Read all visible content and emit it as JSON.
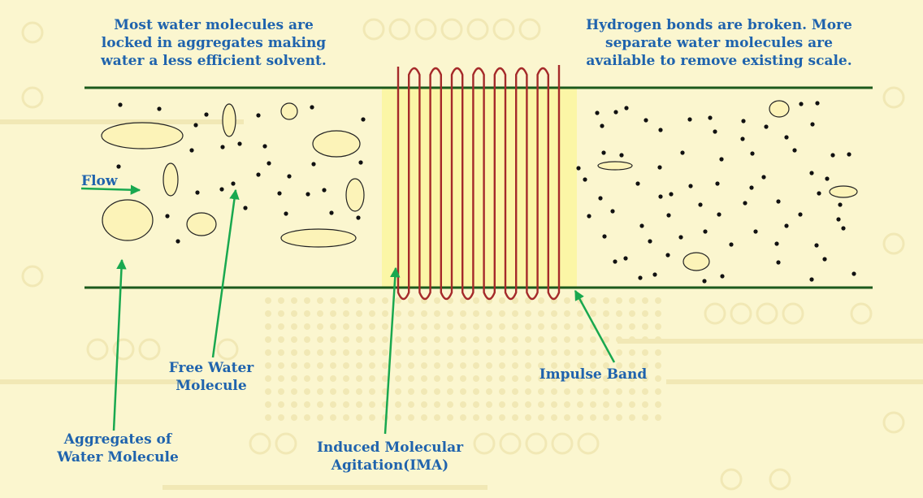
{
  "note_left": {
    "lines": [
      "Most water molecules are",
      "locked in aggregates making",
      "water a less efficient solvent."
    ]
  },
  "note_right": {
    "lines": [
      "Hydrogen bonds are broken. More",
      "separate water molecules are",
      "available to remove existing scale."
    ]
  },
  "labels": {
    "flow": "Flow",
    "free_water": [
      "Free Water",
      "Molecule"
    ],
    "aggregates": [
      "Aggregates of",
      "Water Molecule"
    ],
    "impulse_band": "Impulse Band",
    "ima": [
      "Induced Molecular",
      "Agitation(IMA)"
    ]
  },
  "colors": {
    "background": "#fbf6cf",
    "pattern": "#f1e8b5",
    "pipe_wall": "#1c5a1c",
    "band_fill": "#fbf6a6",
    "coil": "#a52a2a",
    "arrow": "#19a84f",
    "label_text": "#1f63ad",
    "molecule_fill": "#fcf3b8",
    "dot": "#111111"
  },
  "coil": {
    "turns": 8
  }
}
